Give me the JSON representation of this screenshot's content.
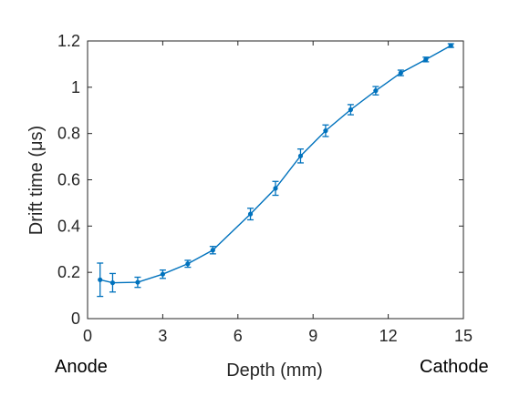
{
  "chart_data": {
    "type": "line",
    "title": "",
    "xlabel": "Depth (mm)",
    "ylabel": "Drift time (μs)",
    "xlim": [
      0,
      15
    ],
    "ylim": [
      0,
      1.2
    ],
    "xticks": [
      0,
      3,
      6,
      9,
      12,
      15
    ],
    "yticks": [
      0,
      0.2,
      0.4,
      0.6,
      0.8,
      1,
      1.2
    ],
    "grid": false,
    "color": "#0072BD",
    "series": [
      {
        "x": [
          0.5,
          1,
          2,
          3,
          4,
          5,
          6.5,
          7.5,
          8.5,
          9.5,
          10.5,
          11.5,
          12.5,
          13.5,
          14.5
        ],
        "y": [
          0.168,
          0.155,
          0.157,
          0.192,
          0.237,
          0.296,
          0.452,
          0.563,
          0.703,
          0.812,
          0.903,
          0.985,
          1.062,
          1.12,
          1.18
        ],
        "err": [
          0.072,
          0.04,
          0.022,
          0.018,
          0.015,
          0.016,
          0.025,
          0.03,
          0.03,
          0.025,
          0.022,
          0.018,
          0.012,
          0.01,
          0.008
        ]
      }
    ]
  },
  "labels": {
    "anode": "Anode",
    "cathode": "Cathode"
  }
}
